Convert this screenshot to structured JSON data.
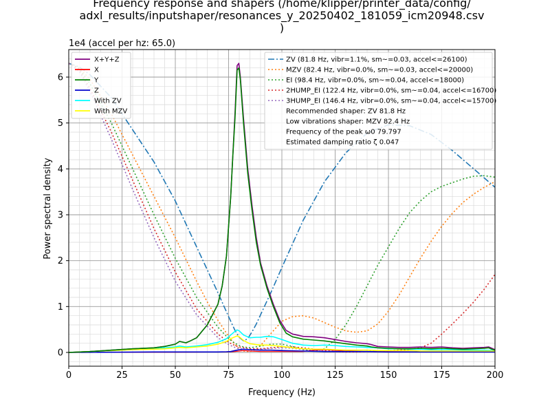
{
  "chart_data": {
    "type": "line",
    "title_lines": [
      "Frequency response and shapers (/home/klipper/printer_data/config/",
      "adxl_results/inputshaper/resonances_y_20250402_181059_icm20948.csv",
      ")"
    ],
    "xlabel": "Frequency (Hz)",
    "ylabel": "Power spectral density",
    "y_offset_label": "1e4 (accel per hz: 65.0)",
    "xlim": [
      0,
      200
    ],
    "ylim": [
      -0.3,
      6.6
    ],
    "y_scale_note": "values in units of 1e4",
    "x_ticks": [
      0,
      25,
      50,
      75,
      100,
      125,
      150,
      175,
      200
    ],
    "y_ticks": [
      0,
      1,
      2,
      3,
      4,
      5,
      6
    ],
    "grid": "major and minor",
    "legends": [
      {
        "placement": "top-left",
        "entries": [
          "X+Y+Z",
          "X",
          "Y",
          "Z",
          "With ZV",
          "With MZV"
        ]
      },
      {
        "placement": "top-right",
        "entries": [
          "ZV (81.8 Hz, vibr=1.1%, sm~=0.03, accel<=26100)",
          "MZV (82.4 Hz, vibr=0.0%, sm~=0.03, accel<=20000)",
          "EI (98.4 Hz, vibr=0.0%, sm~=0.04, accel<=18000)",
          "2HUMP_EI (122.4 Hz, vibr=0.0%, sm~=0.04, accel<=16700)",
          "3HUMP_EI (146.4 Hz, vibr=0.0%, sm~=0.04, accel<=15700)",
          "Recommended shaper: ZV 81.8 Hz",
          "Low vibrations shaper: MZV 82.4 Hz",
          "Frequency of the peak ω0 79.797",
          "Estimated damping ratio ζ 0.047"
        ]
      }
    ],
    "series": [
      {
        "name": "X+Y+Z",
        "color": "#800080",
        "style": "solid",
        "width": 1.6,
        "x": [
          0,
          10,
          20,
          30,
          40,
          45,
          50,
          52,
          55,
          57,
          60,
          65,
          70,
          72,
          74,
          76,
          77,
          78,
          79,
          79.8,
          80.5,
          82,
          84,
          86,
          88,
          90,
          93,
          96,
          99,
          102,
          105,
          110,
          115,
          120,
          125,
          130,
          135,
          140,
          142,
          145,
          150,
          155,
          160,
          165,
          170,
          175,
          180,
          185,
          190,
          195,
          197,
          198,
          200
        ],
        "y": [
          0,
          0.02,
          0.05,
          0.08,
          0.1,
          0.13,
          0.18,
          0.24,
          0.21,
          0.25,
          0.32,
          0.6,
          1.05,
          1.45,
          2.1,
          3.4,
          4.3,
          5.2,
          6.25,
          6.3,
          6,
          5.1,
          4,
          3.2,
          2.5,
          1.95,
          1.45,
          1.05,
          0.7,
          0.48,
          0.4,
          0.35,
          0.34,
          0.32,
          0.28,
          0.24,
          0.21,
          0.19,
          0.17,
          0.13,
          0.12,
          0.11,
          0.11,
          0.12,
          0.11,
          0.12,
          0.1,
          0.09,
          0.1,
          0.11,
          0.12,
          0.1,
          0.06
        ]
      },
      {
        "name": "X",
        "color": "#ff0000",
        "style": "solid",
        "width": 1.2,
        "x": [
          0,
          20,
          40,
          60,
          70,
          76,
          78,
          80,
          82,
          85,
          90,
          100,
          110,
          115,
          120,
          130,
          140,
          150,
          160,
          170,
          180,
          190,
          200
        ],
        "y": [
          0,
          0.003,
          0.005,
          0.008,
          0.01,
          0.015,
          0.02,
          0.03,
          0.04,
          0.03,
          0.02,
          0.02,
          0.02,
          0.05,
          0.06,
          0.03,
          0.02,
          0.02,
          0.015,
          0.01,
          0.01,
          0.01,
          0.01
        ]
      },
      {
        "name": "Y",
        "color": "#008000",
        "style": "solid",
        "width": 1.6,
        "x": [
          0,
          10,
          20,
          30,
          40,
          45,
          50,
          52,
          55,
          57,
          60,
          65,
          70,
          72,
          74,
          76,
          77,
          78,
          79,
          79.8,
          80.5,
          82,
          84,
          86,
          88,
          90,
          93,
          96,
          99,
          102,
          105,
          110,
          115,
          120,
          125,
          130,
          135,
          140,
          142,
          145,
          150,
          155,
          160,
          165,
          170,
          175,
          180,
          185,
          190,
          195,
          197,
          198,
          200
        ],
        "y": [
          0,
          0.02,
          0.05,
          0.08,
          0.1,
          0.13,
          0.18,
          0.24,
          0.21,
          0.25,
          0.32,
          0.6,
          1.05,
          1.45,
          2.1,
          3.4,
          4.3,
          5.1,
          6.15,
          6.2,
          5.95,
          5,
          3.9,
          3.1,
          2.4,
          1.9,
          1.4,
          1,
          0.65,
          0.42,
          0.34,
          0.29,
          0.27,
          0.25,
          0.22,
          0.19,
          0.16,
          0.14,
          0.12,
          0.1,
          0.09,
          0.08,
          0.08,
          0.09,
          0.08,
          0.09,
          0.08,
          0.07,
          0.08,
          0.09,
          0.1,
          0.08,
          0.05
        ]
      },
      {
        "name": "Z",
        "color": "#0000cd",
        "style": "solid",
        "width": 1.6,
        "x": [
          0,
          20,
          40,
          60,
          70,
          74,
          76,
          78,
          80,
          82,
          85,
          90,
          95,
          100,
          110,
          120,
          130,
          140,
          150,
          160,
          170,
          180,
          190,
          200
        ],
        "y": [
          0,
          0.005,
          0.01,
          0.01,
          0.01,
          0.015,
          0.02,
          0.04,
          0.06,
          0.07,
          0.06,
          0.05,
          0.05,
          0.04,
          0.03,
          0.02,
          0.02,
          0.02,
          0.01,
          0.01,
          0.01,
          0.01,
          0.01,
          0.01
        ]
      },
      {
        "name": "With ZV",
        "color": "#00ffff",
        "style": "solid",
        "width": 1.6,
        "x": [
          0,
          10,
          20,
          30,
          40,
          45,
          50,
          52,
          55,
          60,
          65,
          70,
          74,
          76,
          78,
          79,
          80,
          82,
          85,
          88,
          90,
          93,
          96,
          100,
          105,
          110,
          115,
          120,
          125,
          130,
          135,
          140,
          145,
          150,
          155,
          160,
          165,
          170,
          175,
          180,
          185,
          190,
          195,
          200
        ],
        "y": [
          0,
          0.02,
          0.04,
          0.06,
          0.08,
          0.1,
          0.12,
          0.14,
          0.12,
          0.14,
          0.17,
          0.22,
          0.3,
          0.38,
          0.46,
          0.49,
          0.47,
          0.38,
          0.32,
          0.33,
          0.33,
          0.35,
          0.34,
          0.28,
          0.2,
          0.16,
          0.15,
          0.16,
          0.15,
          0.13,
          0.12,
          0.11,
          0.1,
          0.08,
          0.08,
          0.07,
          0.07,
          0.06,
          0.06,
          0.06,
          0.05,
          0.05,
          0.05,
          0.04
        ]
      },
      {
        "name": "With MZV",
        "color": "#ffff00",
        "style": "solid",
        "width": 1.6,
        "x": [
          0,
          10,
          20,
          30,
          40,
          45,
          50,
          52,
          55,
          60,
          65,
          70,
          74,
          76,
          78,
          79,
          80,
          82,
          85,
          88,
          90,
          93,
          96,
          100,
          105,
          110,
          115,
          120,
          125,
          130,
          135,
          140,
          145,
          150,
          155,
          160,
          165,
          170,
          175,
          180,
          185,
          190,
          195,
          200
        ],
        "y": [
          0,
          0.02,
          0.04,
          0.06,
          0.07,
          0.08,
          0.1,
          0.11,
          0.1,
          0.12,
          0.14,
          0.18,
          0.24,
          0.3,
          0.34,
          0.36,
          0.34,
          0.26,
          0.19,
          0.17,
          0.16,
          0.16,
          0.15,
          0.13,
          0.1,
          0.08,
          0.07,
          0.07,
          0.06,
          0.05,
          0.05,
          0.05,
          0.04,
          0.04,
          0.04,
          0.04,
          0.03,
          0.03,
          0.03,
          0.03,
          0.03,
          0.03,
          0.03,
          0.03
        ]
      }
    ],
    "shaper_series": [
      {
        "name": "ZV (81.8 Hz, vibr=1.1%, sm~=0.03, accel<=26100)",
        "color": "#1f77b4",
        "style": "dashdot",
        "x": [
          0,
          5,
          10,
          20,
          30,
          40,
          50,
          60,
          65,
          70,
          75,
          78,
          80,
          82,
          84,
          86,
          88,
          90,
          95,
          100,
          110,
          120,
          130,
          140,
          150,
          160,
          170,
          180,
          190,
          200
        ],
        "y": [
          6.3,
          6.22,
          6.05,
          5.55,
          4.85,
          4.15,
          3.3,
          2.3,
          1.8,
          1.3,
          0.78,
          0.48,
          0.33,
          0.25,
          0.3,
          0.45,
          0.62,
          0.82,
          1.32,
          1.85,
          2.88,
          3.72,
          4.35,
          4.78,
          4.96,
          4.94,
          4.75,
          4.4,
          4,
          3.6
        ]
      },
      {
        "name": "MZV (82.4 Hz, vibr=0.0%, sm~=0.03, accel<=20000)",
        "color": "#ff7f0e",
        "style": "dotted",
        "x": [
          0,
          5,
          10,
          20,
          30,
          40,
          50,
          60,
          65,
          70,
          75,
          78,
          80,
          82,
          85,
          88,
          90,
          95,
          100,
          105,
          110,
          115,
          120,
          125,
          130,
          135,
          140,
          145,
          150,
          155,
          160,
          165,
          170,
          175,
          180,
          185,
          190,
          195,
          200
        ],
        "y": [
          6.3,
          6.2,
          5.95,
          5.2,
          4.3,
          3.4,
          2.5,
          1.55,
          1.1,
          0.7,
          0.35,
          0.17,
          0.08,
          0.03,
          0.02,
          0.07,
          0.15,
          0.42,
          0.68,
          0.78,
          0.8,
          0.75,
          0.65,
          0.55,
          0.47,
          0.44,
          0.47,
          0.62,
          0.9,
          1.25,
          1.65,
          2.05,
          2.42,
          2.75,
          3.03,
          3.27,
          3.45,
          3.6,
          3.72
        ]
      },
      {
        "name": "EI (98.4 Hz, vibr=0.0%, sm~=0.04, accel<=18000)",
        "color": "#2ca02c",
        "style": "dotted",
        "x": [
          0,
          5,
          10,
          20,
          30,
          40,
          50,
          60,
          70,
          75,
          78,
          80,
          82,
          85,
          90,
          95,
          100,
          105,
          110,
          115,
          120,
          125,
          130,
          135,
          140,
          145,
          150,
          155,
          160,
          165,
          170,
          175,
          180,
          185,
          190,
          195,
          200
        ],
        "y": [
          6.3,
          6.18,
          5.85,
          5,
          4,
          3,
          2.05,
          1.2,
          0.55,
          0.3,
          0.2,
          0.15,
          0.12,
          0.1,
          0.14,
          0.18,
          0.18,
          0.13,
          0.06,
          0.03,
          0.08,
          0.28,
          0.6,
          1,
          1.45,
          1.9,
          2.3,
          2.7,
          3.05,
          3.3,
          3.5,
          3.62,
          3.7,
          3.78,
          3.84,
          3.85,
          3.82
        ]
      },
      {
        "name": "2HUMP_EI (122.4 Hz, vibr=0.0%, sm~=0.04, accel<=16700)",
        "color": "#d62728",
        "style": "dotted",
        "x": [
          0,
          5,
          10,
          20,
          30,
          40,
          50,
          60,
          70,
          75,
          78,
          80,
          85,
          90,
          95,
          100,
          105,
          110,
          115,
          120,
          125,
          130,
          135,
          140,
          145,
          150,
          155,
          160,
          165,
          170,
          175,
          180,
          185,
          190,
          195,
          200
        ],
        "y": [
          6.3,
          6.15,
          5.75,
          4.8,
          3.75,
          2.7,
          1.75,
          0.95,
          0.4,
          0.22,
          0.15,
          0.12,
          0.08,
          0.08,
          0.1,
          0.12,
          0.12,
          0.1,
          0.07,
          0.04,
          0.02,
          0.01,
          0.01,
          0.02,
          0.03,
          0.04,
          0.05,
          0.07,
          0.1,
          0.2,
          0.4,
          0.62,
          0.85,
          1.1,
          1.38,
          1.7
        ]
      },
      {
        "name": "3HUMP_EI (146.4 Hz, vibr=0.0%, sm~=0.04, accel<=15700)",
        "color": "#9467bd",
        "style": "dotted",
        "x": [
          0,
          5,
          10,
          20,
          30,
          40,
          50,
          60,
          70,
          75,
          78,
          80,
          85,
          90,
          95,
          100,
          105,
          110,
          115,
          120,
          125,
          130,
          140,
          150,
          160,
          170,
          180,
          190,
          200
        ],
        "y": [
          6.3,
          6.12,
          5.68,
          4.65,
          3.55,
          2.5,
          1.55,
          0.82,
          0.32,
          0.17,
          0.11,
          0.08,
          0.06,
          0.07,
          0.09,
          0.1,
          0.09,
          0.06,
          0.04,
          0.02,
          0.01,
          0.01,
          0.01,
          0.01,
          0.01,
          0.01,
          0.01,
          0.02,
          0.02
        ]
      }
    ]
  }
}
